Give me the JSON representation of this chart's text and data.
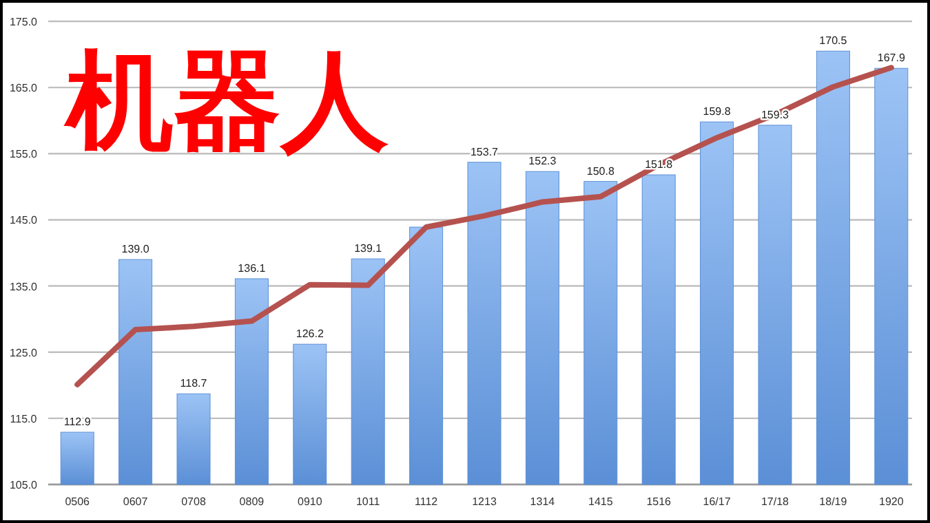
{
  "chart_data": {
    "type": "bar",
    "title": "机器人",
    "categories": [
      "0506",
      "0607",
      "0708",
      "0809",
      "0910",
      "1011",
      "1112",
      "1213",
      "1314",
      "1415",
      "1516",
      "16/17",
      "17/18",
      "18/19",
      "1920"
    ],
    "series": [
      {
        "color": "#5b8fd6",
        "values": [
          112.9,
          139.0,
          118.7,
          136.1,
          126.2,
          139.1,
          143.9,
          153.7,
          152.3,
          150.8,
          151.8,
          159.8,
          159.3,
          170.5,
          167.9
        ],
        "value_labels": [
          "112.9",
          "139.0",
          "118.7",
          "136.1",
          "126.2",
          "139.1",
          null,
          "153.7",
          "152.3",
          "150.8",
          "151.8",
          "159.8",
          "159.3",
          "170.5",
          "167.9"
        ]
      },
      {
        "type": "line",
        "color": "#b5524f",
        "values": [
          120.1,
          128.4,
          128.9,
          129.7,
          135.2,
          135.1,
          143.9,
          145.6,
          147.7,
          148.5,
          153.3,
          157.4,
          160.9,
          165.1,
          168.0
        ]
      }
    ],
    "ylim": [
      105,
      175
    ],
    "yticks": [
      {
        "value": 105,
        "label": "105.0"
      },
      {
        "value": 115,
        "label": "115.0"
      },
      {
        "value": 125,
        "label": "125.0"
      },
      {
        "value": 135,
        "label": "135.0"
      },
      {
        "value": 145,
        "label": "145.0"
      },
      {
        "value": 155,
        "label": "155.0"
      },
      {
        "value": 165,
        "label": "165.0"
      },
      {
        "value": 175,
        "label": "175.0"
      }
    ],
    "grid": "y"
  }
}
